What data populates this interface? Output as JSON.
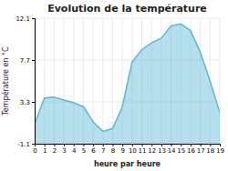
{
  "chart_data": {
    "type": "area",
    "title": "Evolution de la température",
    "xlabel": "heure par heure",
    "ylabel": "Température en °C",
    "x": [
      0,
      1,
      2,
      3,
      4,
      5,
      6,
      7,
      8,
      9,
      10,
      11,
      12,
      13,
      14,
      15,
      16,
      17,
      18,
      19
    ],
    "values": [
      1.0,
      3.7,
      3.8,
      3.5,
      3.2,
      2.8,
      1.2,
      0.2,
      0.5,
      2.8,
      7.5,
      8.8,
      9.5,
      10.0,
      11.3,
      11.5,
      10.8,
      8.5,
      5.5,
      2.2
    ],
    "color": "#5BB8D4",
    "xlim": [
      0,
      19
    ],
    "ylim": [
      -1.1,
      12.1
    ],
    "xticks": [
      0,
      1,
      2,
      3,
      4,
      5,
      6,
      7,
      8,
      9,
      10,
      11,
      12,
      13,
      14,
      15,
      16,
      17,
      18,
      19
    ],
    "yticks": [
      -1.1,
      3.3,
      7.7,
      12.1
    ],
    "grid": true
  }
}
